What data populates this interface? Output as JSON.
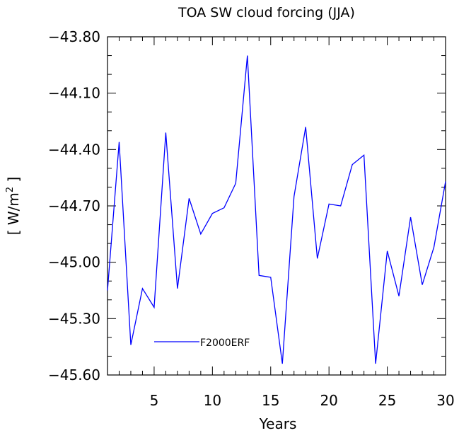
{
  "chart_data": {
    "type": "line",
    "title": "TOA SW cloud forcing (JJA)",
    "xlabel": "Years",
    "ylabel_main": "[ W/m",
    "ylabel_sup": "2",
    "ylabel_end": " ]",
    "xlim": [
      1,
      30
    ],
    "ylim": [
      -45.6,
      -43.8
    ],
    "x_ticks": [
      5,
      10,
      15,
      20,
      25,
      30
    ],
    "y_ticks": [
      -43.8,
      -44.1,
      -44.4,
      -44.7,
      -45.0,
      -45.3,
      -45.6
    ],
    "y_tick_labels": [
      "−43.80",
      "−44.10",
      "−44.40",
      "−44.70",
      "−45.00",
      "−45.30",
      "−45.60"
    ],
    "x_tick_labels": [
      "5",
      "10",
      "15",
      "20",
      "25",
      "30"
    ],
    "grid": false,
    "legend_position": "bottom-left",
    "series": [
      {
        "name": "F2000ERF",
        "color": "#0000ff",
        "x": [
          1,
          2,
          3,
          4,
          5,
          6,
          7,
          8,
          9,
          10,
          11,
          12,
          13,
          14,
          15,
          16,
          17,
          18,
          19,
          20,
          21,
          22,
          23,
          24,
          25,
          26,
          27,
          28,
          29,
          30
        ],
        "values": [
          -45.15,
          -44.36,
          -45.44,
          -45.14,
          -45.24,
          -44.31,
          -45.14,
          -44.66,
          -44.85,
          -44.74,
          -44.71,
          -44.58,
          -43.9,
          -45.07,
          -45.08,
          -45.54,
          -44.65,
          -44.28,
          -44.98,
          -44.69,
          -44.7,
          -44.48,
          -44.43,
          -45.54,
          -44.94,
          -45.18,
          -44.76,
          -45.12,
          -44.92,
          -44.57
        ]
      }
    ]
  }
}
